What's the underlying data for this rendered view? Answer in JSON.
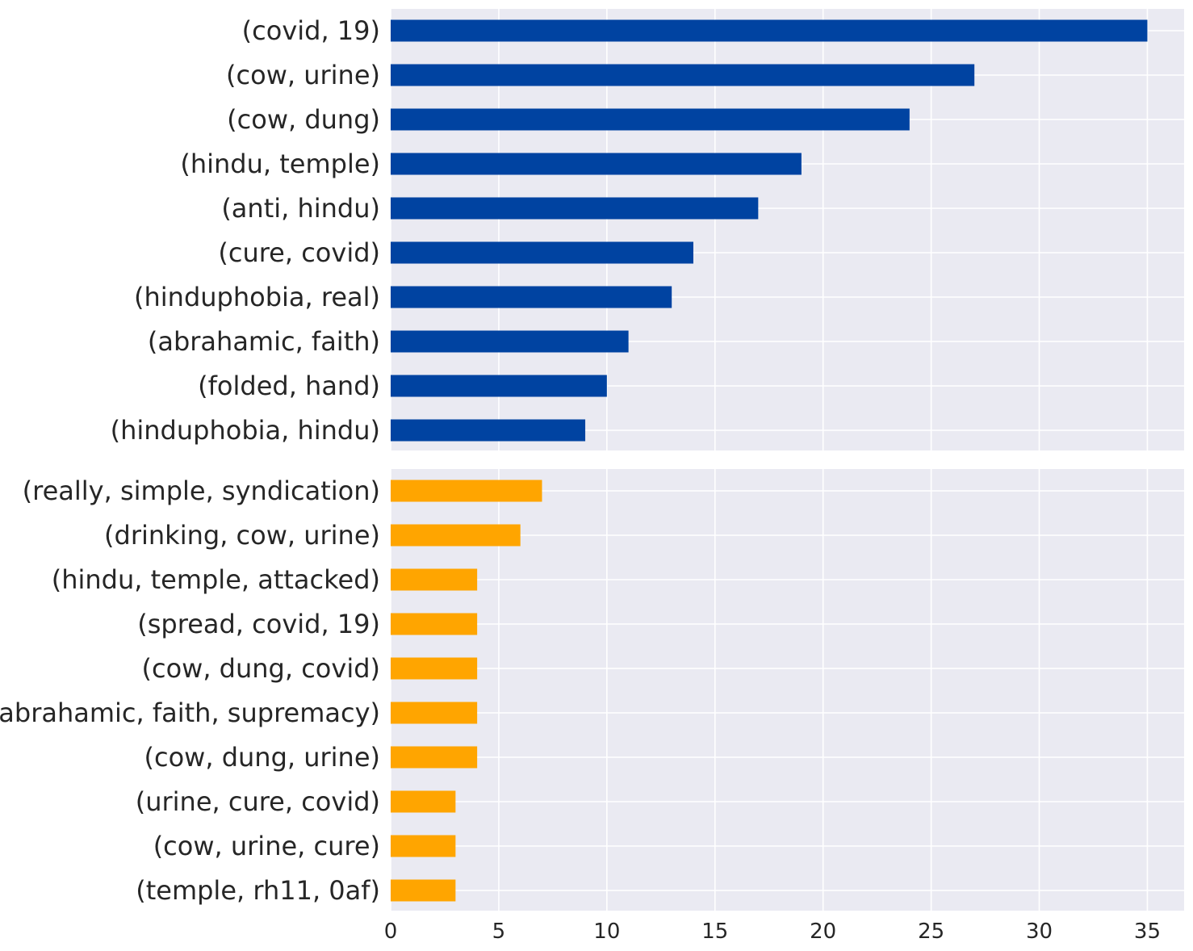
{
  "chart_data": [
    {
      "type": "bar",
      "orientation": "horizontal",
      "title": "",
      "xlabel": "",
      "ylabel": "",
      "color": "#0043a1",
      "xlim": [
        0,
        36.7
      ],
      "xticks": [
        0,
        5,
        10,
        15,
        20,
        25,
        30,
        35
      ],
      "grid": true,
      "categories": [
        "(covid, 19)",
        "(cow, urine)",
        "(cow, dung)",
        "(hindu, temple)",
        "(anti, hindu)",
        "(cure, covid)",
        "(hinduphobia, real)",
        "(abrahamic, faith)",
        "(folded, hand)",
        "(hinduphobia, hindu)"
      ],
      "values": [
        35,
        27,
        24,
        19,
        17,
        14,
        13,
        11,
        10,
        9
      ]
    },
    {
      "type": "bar",
      "orientation": "horizontal",
      "title": "",
      "xlabel": "",
      "ylabel": "",
      "color": "#ffa500",
      "xlim": [
        0,
        36.7
      ],
      "xticks": [
        0,
        5,
        10,
        15,
        20,
        25,
        30,
        35
      ],
      "grid": true,
      "categories": [
        "(really, simple, syndication)",
        "(drinking, cow, urine)",
        "(hindu, temple, attacked)",
        "(spread, covid, 19)",
        "(cow, dung, covid)",
        "(abrahamic, faith, supremacy)",
        "(cow, dung, urine)",
        "(urine, cure, covid)",
        "(cow, urine, cure)",
        "(temple, rh11, 0af)"
      ],
      "values": [
        7,
        6,
        4,
        4,
        4,
        4,
        4,
        3,
        3,
        3
      ]
    }
  ]
}
